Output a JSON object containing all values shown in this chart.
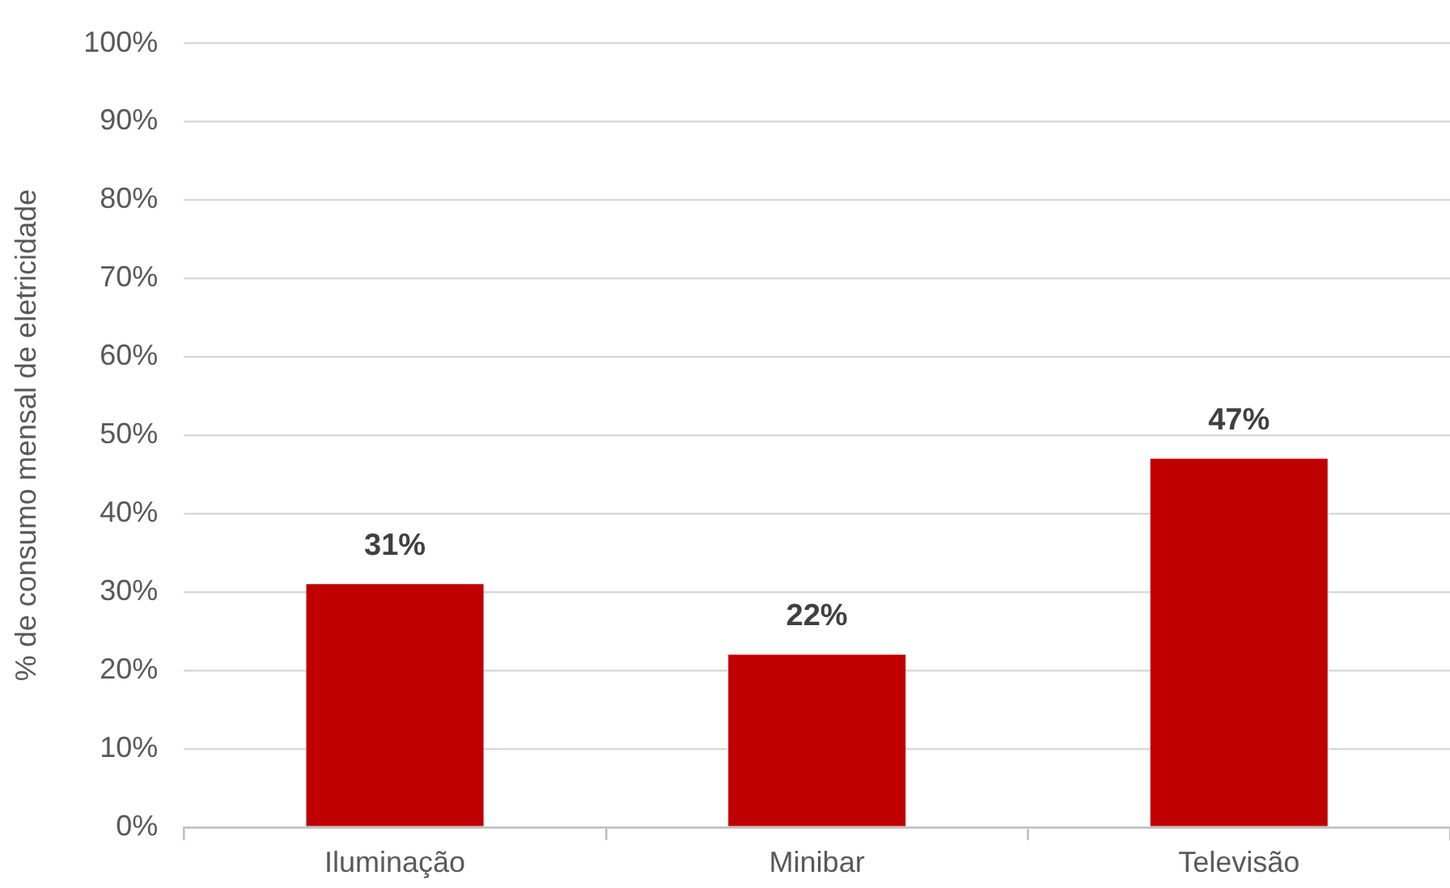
{
  "chart_data": {
    "type": "bar",
    "ylabel": "% de consumo mensal de eletricidade",
    "categories": [
      "Iluminação",
      "Minibar",
      "Televisão"
    ],
    "values": [
      31,
      22,
      47
    ],
    "value_labels": [
      "31%",
      "22%",
      "47%"
    ],
    "color": "#c00000",
    "ylim": [
      0,
      100
    ],
    "yticks": [
      {
        "value": 0,
        "label": "0%"
      },
      {
        "value": 10,
        "label": "10%"
      },
      {
        "value": 20,
        "label": "20%"
      },
      {
        "value": 30,
        "label": "30%"
      },
      {
        "value": 40,
        "label": "40%"
      },
      {
        "value": 50,
        "label": "50%"
      },
      {
        "value": 60,
        "label": "60%"
      },
      {
        "value": 70,
        "label": "70%"
      },
      {
        "value": 80,
        "label": "80%"
      },
      {
        "value": 90,
        "label": "90%"
      },
      {
        "value": 100,
        "label": "100%"
      }
    ],
    "grid": "y",
    "legend": false
  }
}
